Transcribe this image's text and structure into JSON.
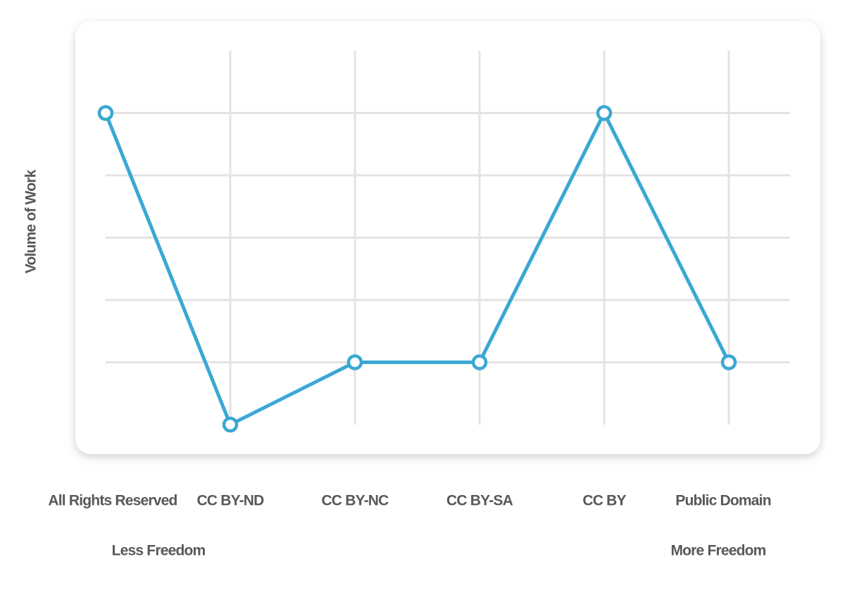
{
  "chart_data": {
    "type": "line",
    "y_label": "Volume of Work",
    "categories": [
      "All Rights Reserved",
      "CC BY-ND",
      "CC BY-NC",
      "CC BY-SA",
      "CC BY",
      "Public Domain"
    ],
    "values": [
      5,
      0,
      1,
      1,
      5,
      1
    ],
    "color": "#3aa8d2",
    "ylim": [
      0,
      6
    ],
    "yticks": [
      1,
      2,
      3,
      4,
      5
    ],
    "grid": true,
    "annotations": [
      "Less Freedom",
      "More Freedom"
    ]
  }
}
